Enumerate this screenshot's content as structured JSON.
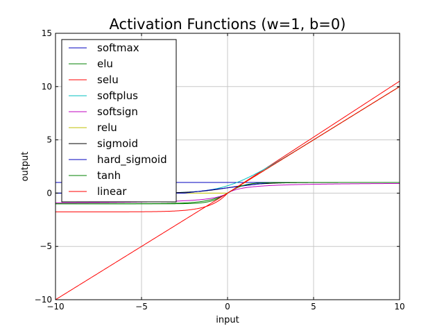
{
  "chart_data": {
    "type": "line",
    "title": "Activation Functions (w=1, b=0)",
    "xlabel": "input",
    "ylabel": "output",
    "xlim": [
      -10,
      10
    ],
    "ylim": [
      -10,
      15
    ],
    "xticks": [
      -10,
      -5,
      0,
      5,
      10
    ],
    "yticks": [
      -10,
      -5,
      0,
      5,
      10,
      15
    ],
    "xtick_labels": [
      "−10",
      "−5",
      "0",
      "5",
      "10"
    ],
    "ytick_labels": [
      "−10",
      "−5",
      "0",
      "5",
      "10",
      "15"
    ],
    "grid": true,
    "legend_position": "upper-left",
    "series": [
      {
        "name": "softmax",
        "color": "#0000bf",
        "function": "softmax"
      },
      {
        "name": "elu",
        "color": "#008000",
        "function": "elu"
      },
      {
        "name": "selu",
        "color": "#ff0000",
        "function": "selu"
      },
      {
        "name": "softplus",
        "color": "#00bfbf",
        "function": "softplus"
      },
      {
        "name": "softsign",
        "color": "#bf00bf",
        "function": "softsign"
      },
      {
        "name": "relu",
        "color": "#bfbf00",
        "function": "relu"
      },
      {
        "name": "sigmoid",
        "color": "#000000",
        "function": "sigmoid"
      },
      {
        "name": "hard_sigmoid",
        "color": "#0000bf",
        "function": "hard_sigmoid"
      },
      {
        "name": "tanh",
        "color": "#008000",
        "function": "tanh"
      },
      {
        "name": "linear",
        "color": "#ff0000",
        "function": "linear"
      }
    ]
  }
}
